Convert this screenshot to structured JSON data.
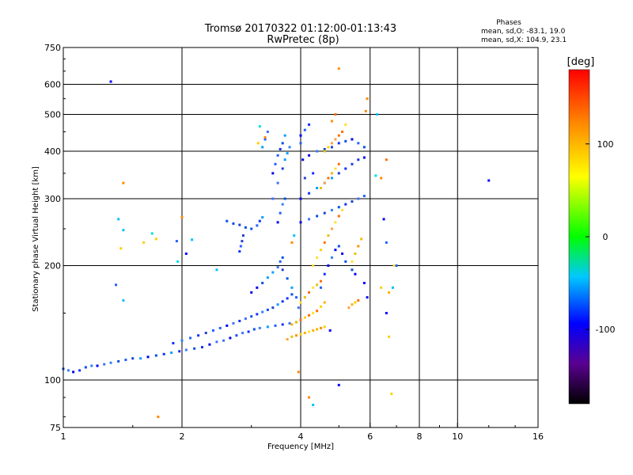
{
  "chart_data": {
    "type": "scatter",
    "title": "Tromsø 20170322 01:12:00-01:13:43",
    "subtitle": "RwPretec (8p)",
    "xlabel": "Frequency [MHz]",
    "ylabel": "Stationary phase Virtual Height [km]",
    "x_scale": "log2",
    "y_scale": "log",
    "xlim": [
      1,
      16
    ],
    "ylim": [
      75,
      750
    ],
    "x_ticks": [
      1,
      2,
      4,
      6,
      8,
      10,
      16
    ],
    "y_ticks": [
      75,
      100,
      200,
      300,
      400,
      500,
      600,
      750
    ],
    "x_tick_labels": [
      "1",
      "2",
      "4",
      "6",
      "8",
      "10",
      "16"
    ],
    "y_tick_labels": [
      "75",
      "100",
      "200",
      "300",
      "400",
      "500",
      "600",
      "750"
    ],
    "grid_x": [
      2,
      4,
      6,
      8,
      10
    ],
    "grid_y": [
      100,
      200,
      300,
      400,
      500,
      600
    ],
    "grid": true,
    "colorbar": {
      "label": "[deg]",
      "range": [
        -180,
        180
      ],
      "ticks": [
        100,
        0,
        -100
      ],
      "tick_labels": [
        "100",
        "0",
        "-100"
      ],
      "colors": [
        "#000000",
        "#5a0090",
        "#0000ff",
        "#00e6ff",
        "#00ff00",
        "#ffff00",
        "#ff8800",
        "#ff0000"
      ]
    },
    "stats": {
      "heading": "Phases",
      "line_o": "mean, sd,O: -83.1, 19.0",
      "line_x": "mean, sd,X: 104.9, 23.1"
    },
    "series": [
      {
        "color_key": "ordinary-trace",
        "points": [
          [
            1.0,
            107
          ],
          [
            1.03,
            106
          ],
          [
            1.06,
            105
          ],
          [
            1.1,
            106
          ],
          [
            1.14,
            108
          ],
          [
            1.18,
            109
          ],
          [
            1.22,
            109
          ],
          [
            1.27,
            110
          ],
          [
            1.32,
            111
          ],
          [
            1.38,
            112
          ],
          [
            1.44,
            113
          ],
          [
            1.5,
            114
          ],
          [
            1.57,
            114
          ],
          [
            1.64,
            115
          ],
          [
            1.72,
            116
          ],
          [
            1.8,
            117
          ],
          [
            1.88,
            118
          ],
          [
            1.97,
            119
          ],
          [
            2.05,
            120
          ],
          [
            2.15,
            121
          ],
          [
            2.25,
            122
          ],
          [
            2.35,
            124
          ],
          [
            2.45,
            126
          ],
          [
            2.55,
            127
          ],
          [
            2.65,
            129
          ],
          [
            2.75,
            131
          ],
          [
            2.85,
            133
          ],
          [
            2.95,
            134
          ],
          [
            3.05,
            136
          ],
          [
            3.15,
            137
          ],
          [
            3.3,
            138
          ],
          [
            3.45,
            139
          ],
          [
            3.6,
            140
          ],
          [
            3.75,
            141
          ],
          [
            3.9,
            142
          ],
          [
            1.9,
            125
          ],
          [
            2.0,
            127
          ],
          [
            2.1,
            129
          ],
          [
            2.2,
            131
          ],
          [
            2.3,
            133
          ],
          [
            2.4,
            135
          ],
          [
            2.5,
            137
          ],
          [
            2.6,
            139
          ],
          [
            2.7,
            141
          ],
          [
            2.8,
            143
          ],
          [
            2.9,
            145
          ],
          [
            3.0,
            147
          ],
          [
            3.1,
            149
          ],
          [
            3.2,
            151
          ],
          [
            3.3,
            153
          ],
          [
            3.4,
            155
          ],
          [
            3.5,
            158
          ],
          [
            3.6,
            161
          ],
          [
            3.7,
            164
          ],
          [
            3.8,
            168
          ],
          [
            3.0,
            170
          ],
          [
            3.1,
            175
          ],
          [
            3.2,
            180
          ],
          [
            3.3,
            186
          ],
          [
            3.4,
            192
          ],
          [
            3.5,
            198
          ],
          [
            3.55,
            205
          ],
          [
            3.6,
            210
          ],
          [
            2.6,
            262
          ],
          [
            2.7,
            258
          ],
          [
            2.8,
            256
          ],
          [
            2.9,
            252
          ],
          [
            3.0,
            250
          ],
          [
            3.1,
            255
          ],
          [
            3.15,
            262
          ],
          [
            3.2,
            268
          ],
          [
            2.8,
            218
          ],
          [
            2.82,
            225
          ],
          [
            2.84,
            232
          ],
          [
            2.86,
            240
          ],
          [
            3.4,
            300
          ],
          [
            3.5,
            330
          ],
          [
            3.6,
            360
          ],
          [
            3.65,
            380
          ],
          [
            3.7,
            395
          ],
          [
            3.75,
            410
          ],
          [
            3.4,
            350
          ],
          [
            3.45,
            370
          ],
          [
            3.5,
            390
          ],
          [
            3.55,
            405
          ],
          [
            3.6,
            420
          ],
          [
            3.65,
            440
          ],
          [
            3.2,
            410
          ],
          [
            3.25,
            430
          ],
          [
            3.3,
            450
          ],
          [
            3.5,
            260
          ],
          [
            3.55,
            275
          ],
          [
            3.6,
            290
          ],
          [
            3.65,
            300
          ],
          [
            4.0,
            260
          ],
          [
            4.2,
            265
          ],
          [
            4.4,
            270
          ],
          [
            4.6,
            275
          ],
          [
            4.8,
            280
          ],
          [
            5.0,
            285
          ],
          [
            5.2,
            290
          ],
          [
            5.4,
            295
          ],
          [
            5.6,
            300
          ],
          [
            5.8,
            305
          ],
          [
            4.0,
            300
          ],
          [
            4.2,
            310
          ],
          [
            4.4,
            320
          ],
          [
            4.6,
            330
          ],
          [
            4.8,
            340
          ],
          [
            5.0,
            350
          ],
          [
            5.2,
            360
          ],
          [
            5.4,
            370
          ],
          [
            5.6,
            380
          ],
          [
            5.8,
            385
          ],
          [
            4.05,
            380
          ],
          [
            4.2,
            390
          ],
          [
            4.4,
            400
          ],
          [
            4.6,
            405
          ],
          [
            4.8,
            410
          ],
          [
            5.0,
            420
          ],
          [
            5.2,
            425
          ],
          [
            5.4,
            430
          ],
          [
            5.6,
            420
          ],
          [
            5.8,
            410
          ],
          [
            4.0,
            440
          ],
          [
            4.1,
            455
          ],
          [
            4.2,
            470
          ],
          [
            4.0,
            420
          ],
          [
            4.1,
            340
          ],
          [
            4.3,
            350
          ],
          [
            4.6,
            190
          ],
          [
            4.7,
            200
          ],
          [
            4.8,
            210
          ],
          [
            4.9,
            220
          ],
          [
            5.0,
            225
          ],
          [
            5.1,
            215
          ],
          [
            5.2,
            205
          ],
          [
            5.4,
            195
          ],
          [
            5.5,
            190
          ],
          [
            3.6,
            195
          ],
          [
            3.7,
            185
          ],
          [
            3.8,
            175
          ],
          [
            3.9,
            165
          ],
          [
            3.95,
            155
          ]
        ]
      },
      {
        "color_key": "extraordinary-trace",
        "points": [
          [
            3.7,
            128
          ],
          [
            3.8,
            130
          ],
          [
            3.9,
            131
          ],
          [
            4.0,
            132
          ],
          [
            4.1,
            133
          ],
          [
            4.2,
            134
          ],
          [
            4.3,
            135
          ],
          [
            4.4,
            136
          ],
          [
            4.5,
            137
          ],
          [
            4.6,
            138
          ],
          [
            3.8,
            140
          ],
          [
            3.9,
            142
          ],
          [
            4.0,
            144
          ],
          [
            4.1,
            146
          ],
          [
            4.2,
            148
          ],
          [
            4.3,
            150
          ],
          [
            4.4,
            152
          ],
          [
            4.5,
            156
          ],
          [
            4.6,
            160
          ],
          [
            4.0,
            160
          ],
          [
            4.1,
            165
          ],
          [
            4.2,
            170
          ],
          [
            4.3,
            175
          ],
          [
            4.4,
            178
          ],
          [
            4.5,
            182
          ],
          [
            4.3,
            200
          ],
          [
            4.4,
            210
          ],
          [
            4.5,
            220
          ],
          [
            4.6,
            230
          ],
          [
            4.7,
            240
          ],
          [
            4.8,
            250
          ],
          [
            4.9,
            260
          ],
          [
            5.0,
            270
          ],
          [
            5.1,
            280
          ],
          [
            4.5,
            320
          ],
          [
            4.6,
            330
          ],
          [
            4.7,
            340
          ],
          [
            4.8,
            350
          ],
          [
            4.9,
            360
          ],
          [
            5.0,
            370
          ],
          [
            4.6,
            400
          ],
          [
            4.7,
            410
          ],
          [
            4.8,
            420
          ],
          [
            4.9,
            430
          ],
          [
            5.0,
            440
          ],
          [
            5.1,
            450
          ],
          [
            5.2,
            470
          ],
          [
            5.3,
            155
          ],
          [
            5.4,
            158
          ],
          [
            5.5,
            160
          ],
          [
            5.6,
            162
          ],
          [
            5.4,
            205
          ],
          [
            5.5,
            215
          ],
          [
            5.6,
            225
          ],
          [
            5.7,
            235
          ],
          [
            5.0,
            660
          ],
          [
            4.8,
            480
          ],
          [
            4.9,
            500
          ],
          [
            6.8,
            92
          ],
          [
            6.7,
            170
          ],
          [
            6.9,
            200
          ],
          [
            6.6,
            380
          ]
        ]
      },
      {
        "color_key": "scattered",
        "points": [
          [
            1.32,
            610
          ],
          [
            1.42,
            330
          ],
          [
            1.38,
            265
          ],
          [
            1.4,
            222
          ],
          [
            1.42,
            248
          ],
          [
            1.36,
            178
          ],
          [
            1.42,
            162
          ],
          [
            1.68,
            243
          ],
          [
            1.72,
            235
          ],
          [
            1.74,
            80
          ],
          [
            1.94,
            232
          ],
          [
            2.12,
            234
          ],
          [
            2.0,
            268
          ],
          [
            3.25,
            435
          ],
          [
            3.15,
            465
          ],
          [
            3.12,
            420
          ],
          [
            4.75,
            135
          ],
          [
            5.0,
            97
          ],
          [
            5.85,
            510
          ],
          [
            6.25,
            500
          ],
          [
            6.4,
            340
          ],
          [
            6.7,
            130
          ],
          [
            6.85,
            175
          ],
          [
            6.5,
            265
          ],
          [
            6.6,
            150
          ],
          [
            7.0,
            200
          ],
          [
            5.9,
            550
          ],
          [
            6.4,
            175
          ],
          [
            6.2,
            345
          ],
          [
            12.0,
            335
          ],
          [
            4.2,
            90
          ],
          [
            4.3,
            86
          ],
          [
            3.95,
            105
          ],
          [
            5.8,
            180
          ],
          [
            5.9,
            165
          ],
          [
            6.6,
            230
          ],
          [
            1.95,
            205
          ],
          [
            2.05,
            215
          ],
          [
            1.6,
            230
          ],
          [
            2.45,
            195
          ],
          [
            3.8,
            230
          ],
          [
            3.85,
            240
          ],
          [
            4.5,
            175
          ]
        ]
      }
    ]
  }
}
